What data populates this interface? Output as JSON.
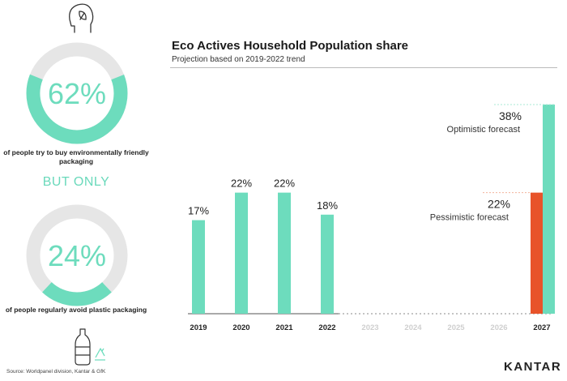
{
  "left": {
    "stat1": {
      "value": 62,
      "value_text": "62%",
      "caption": "of people try to buy environmentally friendly packaging"
    },
    "but_only": "BUT ONLY",
    "stat2": {
      "value": 24,
      "value_text": "24%",
      "caption": "of people regularly avoid plastic packaging"
    },
    "leaf_icon": "head-leaf-icon",
    "bottle_icon": "bottle-recycle-icon"
  },
  "source": "Source: Worldpanel division, Kantar & GfK",
  "brand": "KANTAR",
  "colors": {
    "accent": "#6ddcbd",
    "ring_bg": "#e6e6e6",
    "pessimistic": "#e8532a",
    "optimistic_line": "#a9e8d6",
    "pessimistic_line": "#f2b49c",
    "future_label": "#cfcfcf"
  },
  "chart_data": {
    "type": "bar",
    "title": "Eco Actives Household Population share",
    "subtitle": "Projection based on 2019-2022 trend",
    "categories": [
      "2019",
      "2020",
      "2021",
      "2022",
      "2023",
      "2024",
      "2025",
      "2026",
      "2027"
    ],
    "series": [
      {
        "values": [
          17,
          22,
          22,
          18,
          null,
          null,
          null,
          null,
          null
        ]
      }
    ],
    "data_labels": [
      "17%",
      "22%",
      "22%",
      "18%",
      "",
      "",
      "",
      "",
      ""
    ],
    "forecast": {
      "category": "2027",
      "optimistic": {
        "value": 38,
        "label": "38%",
        "name": "Optimistic forecast"
      },
      "pessimistic": {
        "value": 22,
        "label": "22%",
        "name": "Pessimistic forecast"
      }
    },
    "ylim": [
      0,
      38
    ],
    "grid": false
  }
}
